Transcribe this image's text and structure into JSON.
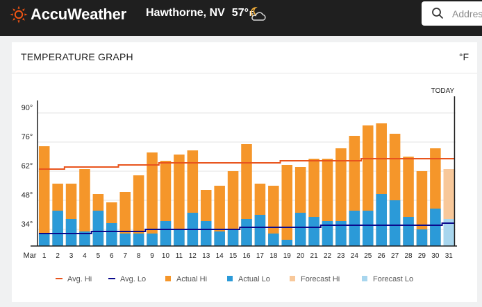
{
  "header": {
    "brand": "AccuWeather",
    "location": "Hawthorne, NV",
    "current_temp": "57°",
    "current_unit": "F",
    "weather_icon": "partly-cloudy-night-icon",
    "search_placeholder": "Address"
  },
  "card": {
    "title": "TEMPERATURE GRAPH",
    "unit": "°F"
  },
  "colors": {
    "avg_hi": "#e8541d",
    "avg_lo": "#0a0a8c",
    "actual_hi": "#f5962a",
    "actual_lo": "#2b9ad8",
    "forecast_hi": "#f8c89a",
    "forecast_lo": "#a8d6ee"
  },
  "chart_data": {
    "type": "bar",
    "month_label": "Mar",
    "today_label": "TODAY",
    "today_day": 31,
    "categories": [
      "1",
      "2",
      "3",
      "4",
      "5",
      "6",
      "7",
      "8",
      "9",
      "10",
      "11",
      "12",
      "13",
      "14",
      "15",
      "16",
      "17",
      "18",
      "19",
      "20",
      "21",
      "22",
      "23",
      "24",
      "25",
      "26",
      "27",
      "28",
      "29",
      "30",
      "31"
    ],
    "y_ticks": [
      "34°",
      "48°",
      "62°",
      "76°",
      "90°"
    ],
    "y_tick_values": [
      34,
      48,
      62,
      76,
      90
    ],
    "ylim": [
      26,
      96
    ],
    "series": [
      {
        "name": "Actual Hi",
        "kind": "bar",
        "values": [
          74,
          56,
          56,
          63,
          51,
          47,
          52,
          60,
          71,
          67,
          70,
          72,
          53,
          55,
          62,
          75,
          56,
          55,
          65,
          64,
          68,
          68,
          73,
          79,
          84,
          85,
          80,
          69,
          62,
          73,
          null
        ]
      },
      {
        "name": "Actual Lo",
        "kind": "bar",
        "values": [
          32,
          43,
          39,
          33,
          43,
          37,
          32,
          32,
          32,
          38,
          34,
          42,
          38,
          33,
          34,
          39,
          41,
          32,
          29,
          42,
          40,
          38,
          38,
          43,
          43,
          51,
          48,
          40,
          34,
          44,
          null
        ]
      },
      {
        "name": "Forecast Hi",
        "kind": "bar",
        "values": [
          null,
          null,
          null,
          null,
          null,
          null,
          null,
          null,
          null,
          null,
          null,
          null,
          null,
          null,
          null,
          null,
          null,
          null,
          null,
          null,
          null,
          null,
          null,
          null,
          null,
          null,
          null,
          null,
          null,
          null,
          63
        ]
      },
      {
        "name": "Forecast Lo",
        "kind": "bar",
        "values": [
          null,
          null,
          null,
          null,
          null,
          null,
          null,
          null,
          null,
          null,
          null,
          null,
          null,
          null,
          null,
          null,
          null,
          null,
          null,
          null,
          null,
          null,
          null,
          null,
          null,
          null,
          null,
          null,
          null,
          null,
          39
        ]
      },
      {
        "name": "Avg. Hi",
        "kind": "line",
        "values": [
          63,
          63,
          64,
          64,
          64,
          64,
          65,
          65,
          65,
          66,
          66,
          66,
          66,
          66,
          66,
          66,
          66,
          66,
          67,
          67,
          67,
          67,
          67,
          67,
          68,
          68,
          68,
          68,
          68,
          68,
          68
        ]
      },
      {
        "name": "Avg. Lo",
        "kind": "line",
        "values": [
          32,
          32,
          32,
          32,
          33,
          33,
          33,
          33,
          34,
          34,
          34,
          34,
          34,
          34,
          34,
          35,
          35,
          35,
          35,
          35,
          35,
          36,
          36,
          36,
          36,
          36,
          36,
          36,
          36,
          36,
          37
        ]
      }
    ],
    "legend": [
      "Avg. Hi",
      "Avg. Lo",
      "Actual Hi",
      "Actual Lo",
      "Forecast Hi",
      "Forecast Lo"
    ],
    "legend_position": "bottom",
    "grid": true
  }
}
